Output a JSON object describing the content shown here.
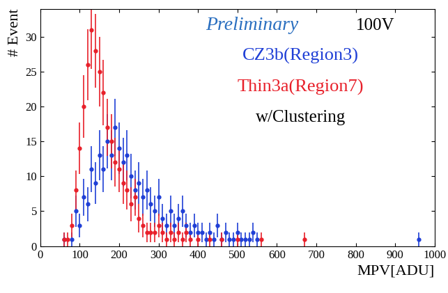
{
  "chart_data": {
    "type": "scatter",
    "x_label": "MPV[ADU]",
    "y_label": "# Event",
    "annotations": [
      "Preliminary",
      "100V",
      "w/Clustering"
    ],
    "xlim": [
      0,
      1000
    ],
    "xticks": [
      0,
      100,
      200,
      300,
      400,
      500,
      600,
      700,
      800,
      900,
      1000
    ],
    "ylim": [
      0,
      34
    ],
    "yticks": [
      0,
      5,
      10,
      15,
      20,
      25,
      30
    ],
    "grid": false,
    "series": [
      {
        "name": "CZ3b(Region3)",
        "color": "#1f3fd6",
        "marker": "o",
        "x": [
          60,
          80,
          90,
          100,
          110,
          120,
          130,
          140,
          150,
          160,
          170,
          180,
          190,
          200,
          210,
          220,
          230,
          240,
          250,
          260,
          270,
          280,
          290,
          300,
          310,
          320,
          330,
          340,
          350,
          360,
          370,
          380,
          390,
          400,
          410,
          420,
          430,
          440,
          450,
          460,
          470,
          480,
          490,
          500,
          510,
          520,
          530,
          540,
          550,
          960
        ],
        "values": [
          1,
          1,
          5,
          3,
          7,
          6,
          11,
          9,
          13,
          11,
          15,
          13,
          17,
          14,
          12,
          13,
          10,
          8,
          9,
          7,
          8,
          6,
          5,
          7,
          4,
          3,
          5,
          3,
          4,
          5,
          3,
          2,
          3,
          2,
          2,
          1,
          2,
          1,
          3,
          1,
          2,
          1,
          1,
          2,
          1,
          1,
          1,
          2,
          1,
          1
        ],
        "errors": [
          1.0,
          1.0,
          2.2,
          1.7,
          2.6,
          2.4,
          3.3,
          3.0,
          3.6,
          3.3,
          3.9,
          3.6,
          4.1,
          3.7,
          3.5,
          3.6,
          3.2,
          2.8,
          3.0,
          2.6,
          2.8,
          2.4,
          2.2,
          2.6,
          2.0,
          1.7,
          2.2,
          1.7,
          2.0,
          2.2,
          1.7,
          1.4,
          1.7,
          1.4,
          1.4,
          1.0,
          1.4,
          1.0,
          1.7,
          1.0,
          1.4,
          1.0,
          1.0,
          1.4,
          1.0,
          1.0,
          1.0,
          1.4,
          1.0,
          1.0
        ]
      },
      {
        "name": "Thin3a(Region7)",
        "color": "#e8202a",
        "marker": "o",
        "x": [
          60,
          70,
          80,
          90,
          100,
          110,
          120,
          130,
          140,
          150,
          160,
          170,
          180,
          190,
          200,
          210,
          220,
          230,
          240,
          250,
          260,
          270,
          280,
          290,
          300,
          310,
          320,
          330,
          340,
          350,
          360,
          370,
          380,
          400,
          430,
          460,
          500,
          560,
          670
        ],
        "values": [
          1,
          1,
          3,
          8,
          14,
          20,
          26,
          31,
          28,
          25,
          22,
          17,
          15,
          12,
          11,
          9,
          8,
          6,
          7,
          4,
          3,
          2,
          2,
          2,
          3,
          2,
          1,
          2,
          1,
          2,
          1,
          2,
          1,
          1,
          1,
          1,
          1,
          1,
          1
        ],
        "errors": [
          1.0,
          1.0,
          1.7,
          2.8,
          3.7,
          4.5,
          5.1,
          5.6,
          5.3,
          5.0,
          4.7,
          4.1,
          3.9,
          3.5,
          3.3,
          3.0,
          2.8,
          2.4,
          2.6,
          2.0,
          1.7,
          1.4,
          1.4,
          1.4,
          1.7,
          1.4,
          1.0,
          1.4,
          1.0,
          1.4,
          1.0,
          1.4,
          1.0,
          1.0,
          1.0,
          1.0,
          1.0,
          1.0,
          1.0
        ]
      }
    ]
  }
}
